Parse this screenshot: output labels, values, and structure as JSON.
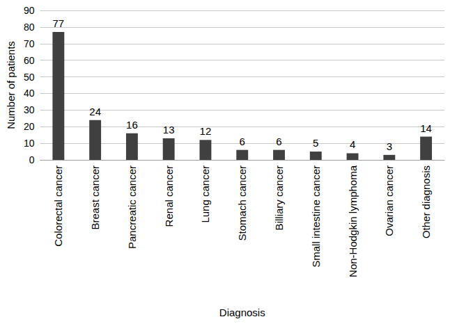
{
  "chart_data": {
    "type": "bar",
    "x_label": "Diagnosis",
    "y_label": "Number of patients",
    "categories": [
      "Colorectal cancer",
      "Breast cancer",
      "Pancreatic cancer",
      "Renal cancer",
      "Lung cancer",
      "Stomach cancer",
      "Billiary cancer",
      "Small intestine cancer",
      "Non-Hodgkin lymphoma",
      "Ovarian cancer",
      "Other diagnosis"
    ],
    "values": [
      77,
      24,
      16,
      13,
      12,
      6,
      6,
      5,
      4,
      3,
      14
    ],
    "color": "#404040",
    "ylim": [
      0,
      90
    ],
    "yticks": [
      0,
      10,
      20,
      30,
      40,
      50,
      60,
      70,
      80,
      90
    ],
    "grid": true,
    "data_labels": true
  }
}
